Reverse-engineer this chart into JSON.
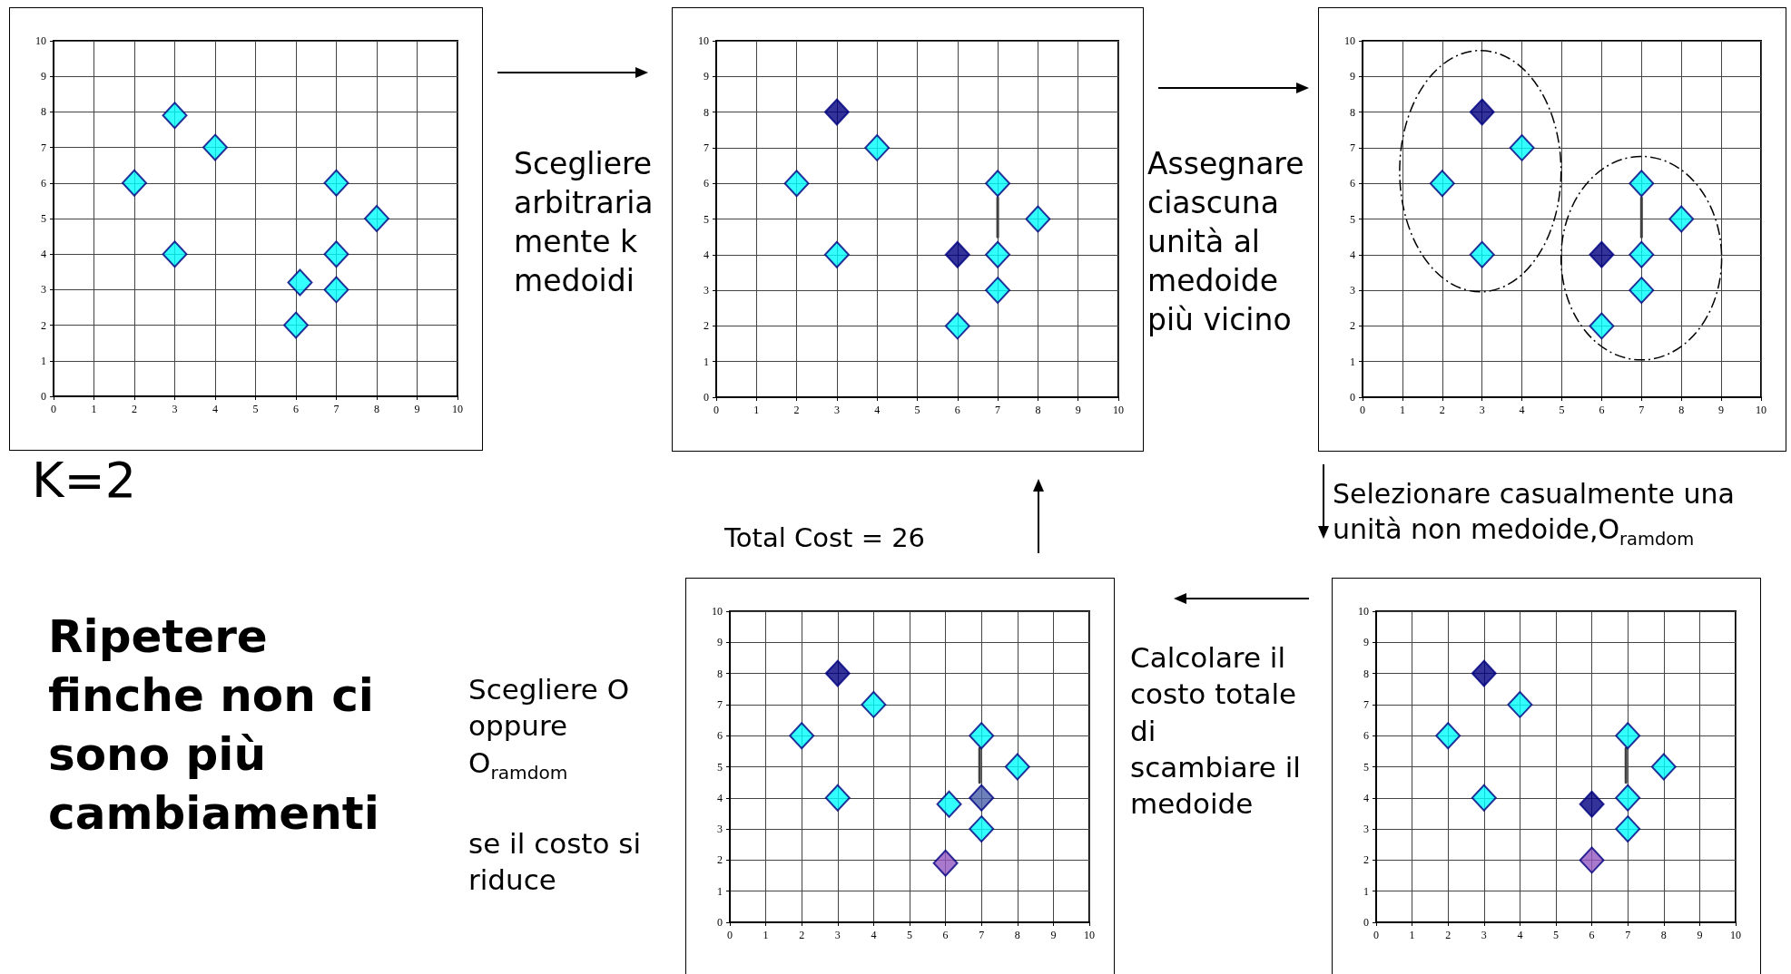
{
  "chart_data": [
    {
      "type": "scatter",
      "xlim": [
        0,
        10
      ],
      "ylim": [
        0,
        10
      ],
      "xticks": [
        0,
        1,
        2,
        3,
        4,
        5,
        6,
        7,
        8,
        9,
        10
      ],
      "yticks": [
        0,
        1,
        2,
        3,
        4,
        5,
        6,
        7,
        8,
        9,
        10
      ],
      "grid": true,
      "marker": "diamond",
      "annotations": [
        "K=2"
      ],
      "series": [
        {
          "type": "scatter",
          "x": [
            3,
            4,
            2,
            3,
            7,
            8,
            7,
            7,
            6.1,
            6
          ],
          "values": [
            7.9,
            7,
            6,
            4,
            6,
            5,
            4,
            3,
            3.2,
            2
          ],
          "color": "#00ffff"
        }
      ]
    },
    {
      "type": "scatter",
      "xlim": [
        0,
        10
      ],
      "ylim": [
        0,
        10
      ],
      "xticks": [
        0,
        1,
        2,
        3,
        4,
        5,
        6,
        7,
        8,
        9,
        10
      ],
      "yticks": [
        0,
        1,
        2,
        3,
        4,
        5,
        6,
        7,
        8,
        9,
        10
      ],
      "grid": true,
      "marker": "diamond",
      "annotations": [
        "Scegliere\narbitraria\nmente k\nmedoidi"
      ],
      "series": [
        {
          "type": "line",
          "x": [
            7,
            7
          ],
          "values": [
            5.6,
            4.5
          ],
          "color": "#404040",
          "marker": "none",
          "line_style": "solid"
        },
        {
          "type": "scatter",
          "x": [
            3,
            4,
            2,
            3,
            7,
            8,
            6,
            7,
            7,
            6
          ],
          "values": [
            8,
            7,
            6,
            4,
            6,
            5,
            4,
            4,
            3,
            2
          ],
          "colors": [
            "#000080",
            "#00ffff",
            "#00ffff",
            "#00ffff",
            "#00ffff",
            "#00ffff",
            "#000080",
            "#00ffff",
            "#00ffff",
            "#00ffff"
          ]
        }
      ]
    },
    {
      "type": "scatter",
      "xlim": [
        0,
        10
      ],
      "ylim": [
        0,
        10
      ],
      "xticks": [
        0,
        1,
        2,
        3,
        4,
        5,
        6,
        7,
        8,
        9,
        10
      ],
      "yticks": [
        0,
        1,
        2,
        3,
        4,
        5,
        6,
        7,
        8,
        9,
        10
      ],
      "grid": true,
      "marker": "diamond",
      "annotations": [
        "Assegnare\nciascuna\nunità al\nmedoide\npiù vicino"
      ],
      "series": [
        {
          "type": "line",
          "x": [
            7,
            7
          ],
          "values": [
            5.6,
            4.5
          ],
          "color": "#404040",
          "marker": "none",
          "line_style": "solid"
        },
        {
          "type": "scatter",
          "x": [
            3,
            4,
            2,
            3,
            7,
            8,
            6,
            7,
            7,
            6
          ],
          "values": [
            8,
            7,
            6,
            4,
            6,
            5,
            4,
            4,
            3,
            2
          ],
          "colors": [
            "#000080",
            "#00ffff",
            "#00ffff",
            "#00ffff",
            "#00ffff",
            "#00ffff",
            "#000080",
            "#00ffff",
            "#00ffff",
            "#00ffff"
          ]
        }
      ]
    },
    {
      "type": "scatter",
      "xlim": [
        0,
        10
      ],
      "ylim": [
        0,
        10
      ],
      "xticks": [
        0,
        1,
        2,
        3,
        4,
        5,
        6,
        7,
        8,
        9,
        10
      ],
      "yticks": [
        0,
        1,
        2,
        3,
        4,
        5,
        6,
        7,
        8,
        9,
        10
      ],
      "grid": true,
      "marker": "diamond",
      "annotations": [
        "Total Cost = 26",
        "Scegliere O\noppure\nO$_{ramdom}$",
        "se il costo si\nriduce",
        "Ripetere\nfinche non ci\nsono più\ncambiamenti"
      ],
      "series": [
        {
          "type": "line",
          "x": [
            6.95,
            6.95
          ],
          "values": [
            5.6,
            4.5
          ],
          "color": "#404040",
          "marker": "none",
          "line_style": "solid"
        },
        {
          "type": "scatter",
          "x": [
            3,
            4,
            2,
            3,
            7,
            8,
            6.1,
            7,
            7,
            6
          ],
          "values": [
            8,
            7,
            6,
            4,
            6,
            5,
            3.8,
            4,
            3,
            1.9
          ],
          "colors": [
            "#000080",
            "#00ffff",
            "#00ffff",
            "#00ffff",
            "#00ffff",
            "#00ffff",
            "#00ffff",
            "#4a62aa",
            "#00ffff",
            "#9457c0"
          ]
        }
      ]
    },
    {
      "type": "scatter",
      "xlim": [
        0,
        10
      ],
      "ylim": [
        0,
        10
      ],
      "xticks": [
        0,
        1,
        2,
        3,
        4,
        5,
        6,
        7,
        8,
        9,
        10
      ],
      "yticks": [
        0,
        1,
        2,
        3,
        4,
        5,
        6,
        7,
        8,
        9,
        10
      ],
      "grid": true,
      "marker": "diamond",
      "annotations": [
        "Selezionare casualmente una\nunità non medoide,O$_{ramdom}$",
        "Calcolare il\ncosto totale\ndi\nscambiare il\nmedoide"
      ],
      "series": [
        {
          "type": "line",
          "x": [
            6.95,
            6.95
          ],
          "values": [
            5.6,
            4.5
          ],
          "color": "#404040",
          "marker": "none",
          "line_style": "solid"
        },
        {
          "type": "scatter",
          "x": [
            3,
            4,
            2,
            3,
            7,
            8,
            6,
            7,
            7,
            6
          ],
          "values": [
            8,
            7,
            6,
            4,
            6,
            5,
            3.8,
            4,
            3,
            2
          ],
          "colors": [
            "#000080",
            "#00ffff",
            "#00ffff",
            "#00ffff",
            "#00ffff",
            "#00ffff",
            "#000080",
            "#00ffff",
            "#00ffff",
            "#9457c0"
          ]
        }
      ]
    }
  ]
}
